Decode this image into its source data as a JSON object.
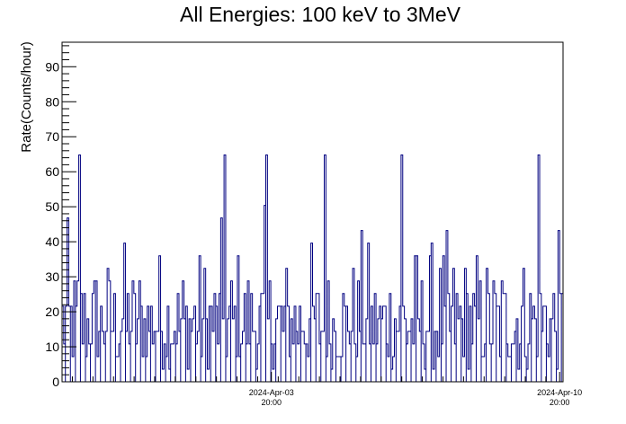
{
  "chart_data": {
    "type": "line",
    "title": "All Energies:  100 keV to 3MeV",
    "ylabel": "Rate(Counts/hour)",
    "xlabel": "",
    "ylim": [
      0,
      97
    ],
    "xlim": [
      "2024-Mar-29 18:00",
      "2024-Apr-10 22:00"
    ],
    "y_ticks": [
      0,
      10,
      20,
      30,
      40,
      50,
      60,
      70,
      80,
      90
    ],
    "x_ticks": [
      {
        "date": "2024-Apr-03",
        "time": "20:00"
      },
      {
        "date": "2024-Apr-10",
        "time": "20:00"
      }
    ],
    "grid": false,
    "series": [
      {
        "color": "#000080",
        "count_levels": [
          3.6,
          7.2,
          10.8,
          14.4,
          18.0,
          21.6,
          25.2,
          28.8,
          32.4,
          36.0,
          39.6,
          43.2,
          46.8,
          50.4,
          54.0,
          57.6,
          61.2,
          64.8
        ],
        "peak_values": [
          64.8,
          64.8,
          64.8,
          64.8,
          64.8,
          64.8
        ]
      }
    ]
  }
}
